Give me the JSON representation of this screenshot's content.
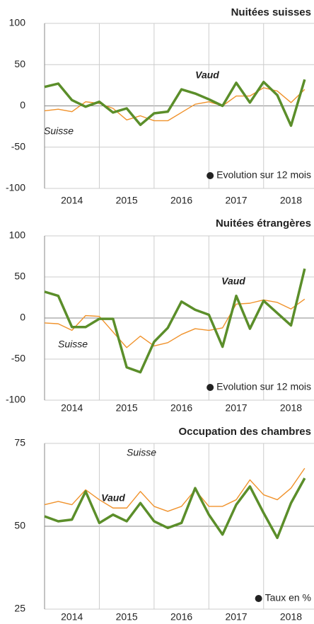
{
  "chart_data": [
    {
      "type": "line",
      "title": "Nuitées suisses",
      "note": "Evolution sur 12 mois",
      "x": [
        2014,
        2014.25,
        2014.5,
        2014.75,
        2015,
        2015.25,
        2015.5,
        2015.75,
        2016,
        2016.25,
        2016.5,
        2016.75,
        2017,
        2017.25,
        2017.5,
        2017.75,
        2018,
        2018.25,
        2018.5,
        2018.75
      ],
      "series": [
        {
          "name": "Suisse",
          "color": "#f0922b",
          "values": [
            -6,
            -4,
            -7,
            5,
            3,
            -3,
            -17,
            -12,
            -18,
            -18,
            -8,
            2,
            5,
            0,
            12,
            12,
            22,
            18,
            4,
            20
          ]
        },
        {
          "name": "Vaud",
          "color": "#5b8e2a",
          "values": [
            23,
            27,
            7,
            -1,
            5,
            -8,
            -3,
            -23,
            -9,
            -7,
            20,
            15,
            8,
            0,
            28,
            4,
            29,
            13,
            -24,
            32
          ]
        }
      ],
      "xlim": [
        2014,
        2018.92
      ],
      "xticks": [
        {
          "value": 2014.5,
          "label": "2014"
        },
        {
          "value": 2015.5,
          "label": "2015"
        },
        {
          "value": 2016.5,
          "label": "2016"
        },
        {
          "value": 2017.5,
          "label": "2017"
        },
        {
          "value": 2018.5,
          "label": "2018"
        }
      ],
      "xgrid": [
        2015,
        2016,
        2017,
        2018
      ],
      "ylim": [
        -100,
        100
      ],
      "yticks": [
        -100,
        -50,
        0,
        50,
        100
      ],
      "ref_line": 0,
      "grid": true
    },
    {
      "type": "line",
      "title": "Nuitées étrangères",
      "note": "Evolution sur 12 mois",
      "x": [
        2014,
        2014.25,
        2014.5,
        2014.75,
        2015,
        2015.25,
        2015.5,
        2015.75,
        2016,
        2016.25,
        2016.5,
        2016.75,
        2017,
        2017.25,
        2017.5,
        2017.75,
        2018,
        2018.25,
        2018.5,
        2018.75
      ],
      "series": [
        {
          "name": "Suisse",
          "color": "#f0922b",
          "values": [
            -6,
            -7,
            -15,
            3,
            2,
            -17,
            -36,
            -22,
            -34,
            -30,
            -20,
            -13,
            -15,
            -12,
            17,
            18,
            22,
            19,
            11,
            23
          ]
        },
        {
          "name": "Vaud",
          "color": "#5b8e2a",
          "values": [
            32,
            27,
            -11,
            -11,
            -1,
            -1,
            -60,
            -66,
            -29,
            -12,
            20,
            10,
            4,
            -35,
            27,
            -13,
            21,
            6,
            -9,
            60
          ]
        }
      ],
      "xlim": [
        2014,
        2018.92
      ],
      "xticks": [
        {
          "value": 2014.5,
          "label": "2014"
        },
        {
          "value": 2015.5,
          "label": "2015"
        },
        {
          "value": 2016.5,
          "label": "2016"
        },
        {
          "value": 2017.5,
          "label": "2017"
        },
        {
          "value": 2018.5,
          "label": "2018"
        }
      ],
      "xgrid": [
        2015,
        2016,
        2017,
        2018
      ],
      "ylim": [
        -100,
        100
      ],
      "yticks": [
        -100,
        -50,
        0,
        50,
        100
      ],
      "ref_line": 0,
      "grid": true
    },
    {
      "type": "line",
      "title": "Occupation des chambres",
      "note": "Taux en %",
      "x": [
        2014,
        2014.25,
        2014.5,
        2014.75,
        2015,
        2015.25,
        2015.5,
        2015.75,
        2016,
        2016.25,
        2016.5,
        2016.75,
        2017,
        2017.25,
        2017.5,
        2017.75,
        2018,
        2018.25,
        2018.5,
        2018.75
      ],
      "series": [
        {
          "name": "Suisse",
          "color": "#f0922b",
          "values": [
            56.5,
            57.5,
            56.5,
            61,
            58,
            55.5,
            55.5,
            60.5,
            56,
            54.5,
            56,
            61,
            56,
            56,
            58,
            64,
            59.5,
            58,
            61.5,
            67.5
          ]
        },
        {
          "name": "Vaud",
          "color": "#5b8e2a",
          "values": [
            53,
            51.5,
            52,
            60.5,
            51,
            53.5,
            51.5,
            57,
            51.5,
            49.5,
            51,
            61.5,
            53.5,
            47.5,
            56.5,
            62,
            54,
            46.5,
            57,
            64.5
          ]
        }
      ],
      "xlim": [
        2014,
        2018.92
      ],
      "xticks": [
        {
          "value": 2014.5,
          "label": "2014"
        },
        {
          "value": 2015.5,
          "label": "2015"
        },
        {
          "value": 2016.5,
          "label": "2016"
        },
        {
          "value": 2017.5,
          "label": "2017"
        },
        {
          "value": 2018.5,
          "label": "2018"
        }
      ],
      "xgrid": [
        2015,
        2016,
        2017,
        2018
      ],
      "ylim": [
        25,
        75
      ],
      "yticks": [
        25,
        50,
        75
      ],
      "ref_line": 50,
      "grid": true
    }
  ]
}
